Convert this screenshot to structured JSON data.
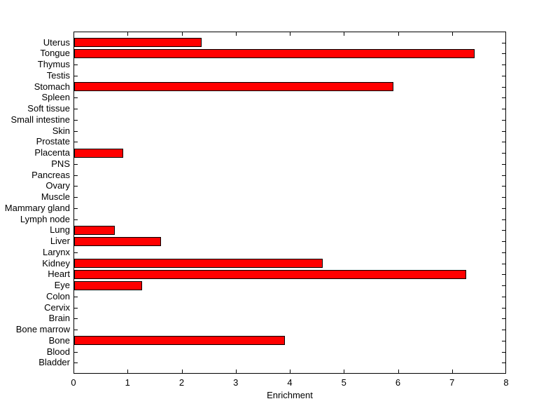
{
  "figure": {
    "background_color": "#FFFFFF",
    "axis_color": "#000000",
    "text_color": "#000000"
  },
  "chart_data": {
    "type": "bar",
    "orientation": "horizontal",
    "title": "",
    "xlabel": "Enrichment",
    "ylabel": "",
    "xlim": [
      0,
      8
    ],
    "xtick_labels": [
      "0",
      "1",
      "2",
      "3",
      "4",
      "5",
      "6",
      "7",
      "8"
    ],
    "xtick_values": [
      0,
      1,
      2,
      3,
      4,
      5,
      6,
      7,
      8
    ],
    "grid": false,
    "legend": "none",
    "bar_fill_color": "#FF0000",
    "bar_border_color": "#000000",
    "categories_top_to_bottom": [
      "Uterus",
      "Tongue",
      "Thymus",
      "Testis",
      "Stomach",
      "Spleen",
      "Soft tissue",
      "Small intestine",
      "Skin",
      "Prostate",
      "Placenta",
      "PNS",
      "Pancreas",
      "Ovary",
      "Muscle",
      "Mammary gland",
      "Lymph node",
      "Lung",
      "Liver",
      "Larynx",
      "Kidney",
      "Heart",
      "Eye",
      "Colon",
      "Cervix",
      "Brain",
      "Bone marrow",
      "Bone",
      "Blood",
      "Bladder"
    ],
    "values": [
      2.35,
      7.4,
      0,
      0,
      5.9,
      0,
      0,
      0,
      0,
      0,
      0.9,
      0,
      0,
      0,
      0,
      0,
      0,
      0.75,
      1.6,
      0,
      4.6,
      7.25,
      1.25,
      0,
      0,
      0,
      0,
      3.9,
      0,
      0
    ]
  }
}
